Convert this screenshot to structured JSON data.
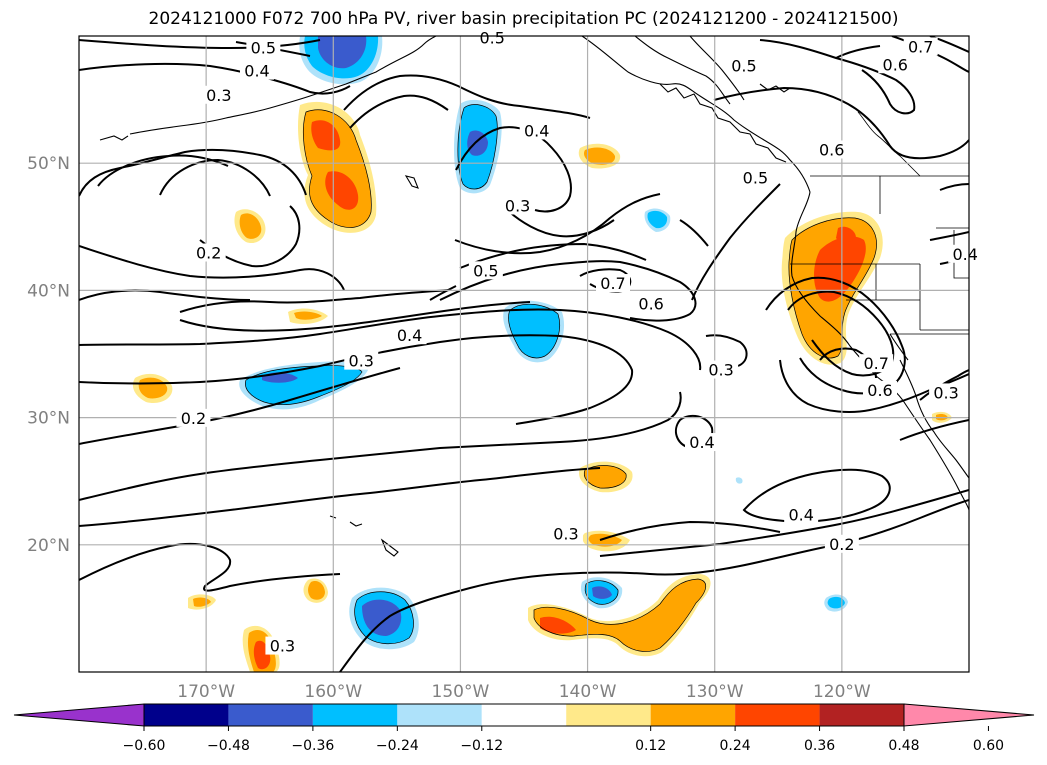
{
  "title": "2024121000 F072 700 hPa PV, river basin precipitation PC (2024121200 - 2024121500)",
  "map": {
    "lon_range": [
      -180,
      -110
    ],
    "lat_range": [
      10,
      60
    ],
    "lon_ticks": [
      {
        "value": -170,
        "label": "170°W"
      },
      {
        "value": -160,
        "label": "160°W"
      },
      {
        "value": -150,
        "label": "150°W"
      },
      {
        "value": -140,
        "label": "140°W"
      },
      {
        "value": -130,
        "label": "130°W"
      },
      {
        "value": -120,
        "label": "120°W"
      }
    ],
    "lat_ticks": [
      {
        "value": 20,
        "label": "20°N"
      },
      {
        "value": 30,
        "label": "30°N"
      },
      {
        "value": 40,
        "label": "40°N"
      },
      {
        "value": 50,
        "label": "50°N"
      }
    ],
    "grid": true,
    "tick_color": "#808080"
  },
  "chart_data": {
    "type": "heatmap",
    "variables": [
      "700 hPa PV (contours)",
      "river basin precipitation PC (shaded)"
    ],
    "contour_labels": [
      {
        "lon": -165.5,
        "lat": 59.0,
        "text": "0.5"
      },
      {
        "lon": -166.0,
        "lat": 57.2,
        "text": "0.4"
      },
      {
        "lon": -169.0,
        "lat": 55.3,
        "text": "0.3"
      },
      {
        "lon": -147.5,
        "lat": 59.8,
        "text": "0.5"
      },
      {
        "lon": -144.0,
        "lat": 52.5,
        "text": "0.4"
      },
      {
        "lon": -145.5,
        "lat": 46.6,
        "text": "0.3"
      },
      {
        "lon": -169.8,
        "lat": 42.9,
        "text": "0.2"
      },
      {
        "lon": -148.0,
        "lat": 41.5,
        "text": "0.5"
      },
      {
        "lon": -138.0,
        "lat": 40.5,
        "text": "0.7"
      },
      {
        "lon": -135.0,
        "lat": 38.9,
        "text": "0.6"
      },
      {
        "lon": -154.0,
        "lat": 36.4,
        "text": "0.4"
      },
      {
        "lon": -157.8,
        "lat": 34.4,
        "text": "0.3"
      },
      {
        "lon": -171.0,
        "lat": 29.9,
        "text": "0.2"
      },
      {
        "lon": -127.7,
        "lat": 57.6,
        "text": "0.5"
      },
      {
        "lon": -113.8,
        "lat": 59.1,
        "text": "0.7"
      },
      {
        "lon": -115.8,
        "lat": 57.7,
        "text": "0.6"
      },
      {
        "lon": -120.8,
        "lat": 51.0,
        "text": "0.6"
      },
      {
        "lon": -126.8,
        "lat": 48.8,
        "text": "0.5"
      },
      {
        "lon": -110.3,
        "lat": 42.8,
        "text": "0.4"
      },
      {
        "lon": -129.5,
        "lat": 33.7,
        "text": "0.3"
      },
      {
        "lon": -117.3,
        "lat": 34.2,
        "text": "0.7"
      },
      {
        "lon": -117.0,
        "lat": 32.1,
        "text": "0.6"
      },
      {
        "lon": -111.8,
        "lat": 31.9,
        "text": "0.3"
      },
      {
        "lon": -131.0,
        "lat": 28.0,
        "text": "0.4"
      },
      {
        "lon": -123.2,
        "lat": 22.3,
        "text": "0.4"
      },
      {
        "lon": -120.0,
        "lat": 20.0,
        "text": "0.2"
      },
      {
        "lon": -141.7,
        "lat": 20.8,
        "text": "0.3"
      },
      {
        "lon": -164.0,
        "lat": 12.0,
        "text": "0.3"
      }
    ],
    "colorbar": {
      "ticks": [
        "−0.60",
        "−0.48",
        "−0.36",
        "−0.24",
        "−0.12",
        "0.12",
        "0.24",
        "0.36",
        "0.48",
        "0.60"
      ],
      "colors": [
        "#9932cc",
        "#00008b",
        "#3a5bcd",
        "#00bfff",
        "#aee2fa",
        "#ffffff",
        "#ffe98a",
        "#ffa500",
        "#ff4500",
        "#b22222",
        "#ff88aa"
      ],
      "extend": "both",
      "placement": "bottom"
    }
  }
}
